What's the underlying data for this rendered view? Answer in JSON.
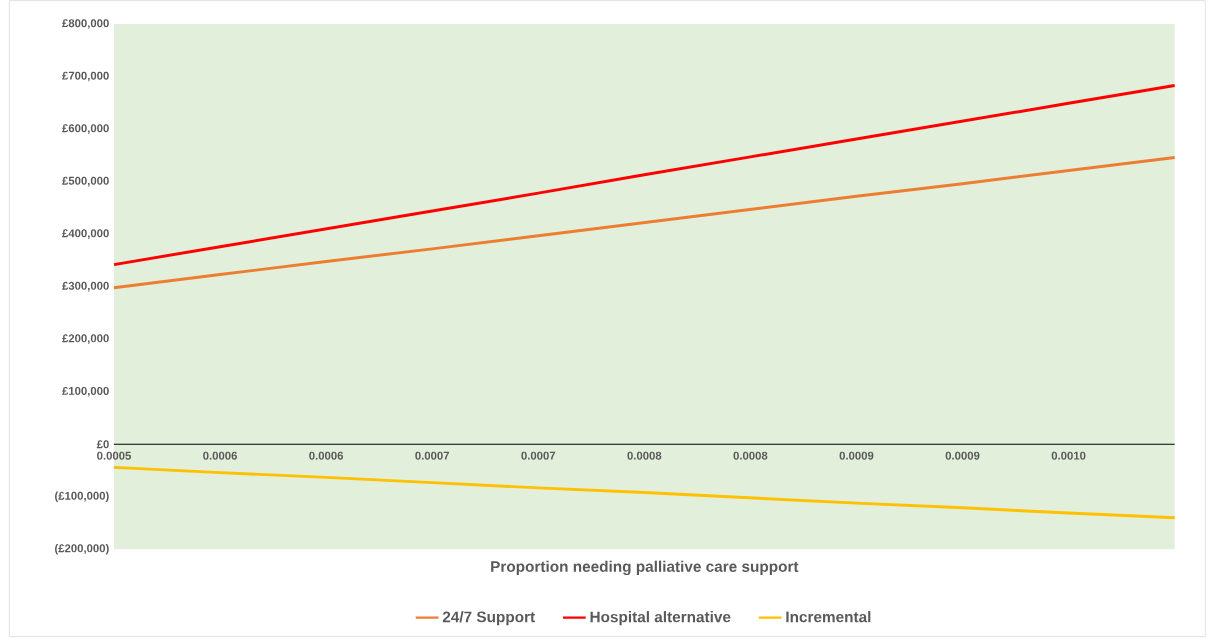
{
  "chart_data": {
    "type": "line",
    "xlabel": "Proportion needing palliative care support",
    "categories": [
      "0.0005",
      "0.0006",
      "0.0006",
      "0.0007",
      "0.0007",
      "0.0008",
      "0.0008",
      "0.0009",
      "0.0009",
      "0.0010",
      null
    ],
    "series": [
      {
        "name": "24/7 Support",
        "color": "#ed7d31",
        "values": [
          298000,
          323000,
          348000,
          372000,
          397000,
          422000,
          447000,
          472000,
          496000,
          521000,
          546000
        ]
      },
      {
        "name": "Hospital alternative",
        "color": "#ff0000",
        "values": [
          342000,
          376000,
          410000,
          444000,
          478000,
          513000,
          547000,
          581000,
          615000,
          649000,
          683000
        ]
      },
      {
        "name": "Incremental",
        "color": "#ffc000",
        "values": [
          -44000,
          -54000,
          -63000,
          -73000,
          -83000,
          -92000,
          -102000,
          -112000,
          -121000,
          -131000,
          -140000
        ]
      }
    ],
    "ylim": [
      -200000,
      800000
    ],
    "yticks": [
      {
        "value": -200000,
        "label": "(£200,000)"
      },
      {
        "value": -100000,
        "label": "(£100,000)"
      },
      {
        "value": 0,
        "label": "£0"
      },
      {
        "value": 100000,
        "label": "£100,000"
      },
      {
        "value": 200000,
        "label": "£200,000"
      },
      {
        "value": 300000,
        "label": "£300,000"
      },
      {
        "value": 400000,
        "label": "£400,000"
      },
      {
        "value": 500000,
        "label": "£500,000"
      },
      {
        "value": 600000,
        "label": "£600,000"
      },
      {
        "value": 700000,
        "label": "£700,000"
      },
      {
        "value": 800000,
        "label": "£800,000"
      }
    ],
    "grid": false,
    "legend": "bottom",
    "marker": "none",
    "line_style": "solid"
  }
}
